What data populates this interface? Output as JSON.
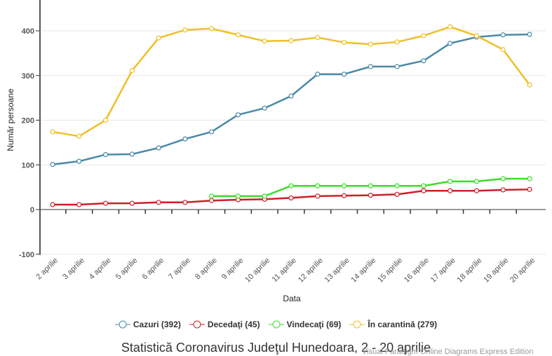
{
  "chart_data": {
    "type": "line",
    "title": "Statistică Coronavirus Judeţul Hunedoara, 2 - 20 aprilie",
    "xlabel": "Data",
    "ylabel": "Număr persoane",
    "ylim": [
      -100,
      450
    ],
    "yticks": [
      -100,
      0,
      100,
      200,
      300,
      400
    ],
    "grid": true,
    "legend_position": "bottom",
    "categories": [
      "2 aprilie",
      "3 aprilie",
      "4 aprilie",
      "5 aprilie",
      "6 aprilie",
      "7 aprilie",
      "8 aprilie",
      "9 aprilie",
      "10 aprilie",
      "11 aprilie",
      "12 aprilie",
      "13 aprilie",
      "14 aprilie",
      "15 aprilie",
      "16 aprilie",
      "17 aprilie",
      "18 aprilie",
      "19 aprilie",
      "20 aprilie"
    ],
    "series": [
      {
        "name": "Cazuri",
        "legend": "Cazuri (392)",
        "color": "#4a88a8",
        "values": [
          101,
          108,
          123,
          124,
          138,
          158,
          174,
          212,
          227,
          254,
          303,
          303,
          320,
          320,
          333,
          372,
          386,
          391,
          392
        ]
      },
      {
        "name": "Decedaţi",
        "legend": "Decedaţi (45)",
        "color": "#cc1f25",
        "values": [
          11,
          11,
          14,
          14,
          16,
          16,
          20,
          22,
          23,
          26,
          30,
          31,
          32,
          34,
          42,
          42,
          42,
          44,
          45
        ]
      },
      {
        "name": "Vindecaţi",
        "legend": "Vindecaţi (69)",
        "color": "#3ddc2a",
        "values": [
          null,
          null,
          null,
          null,
          null,
          null,
          30,
          30,
          30,
          53,
          53,
          53,
          53,
          53,
          53,
          63,
          63,
          69,
          69
        ]
      },
      {
        "name": "În carantină",
        "legend": "În carantină (279)",
        "color": "#f0bf26",
        "values": [
          174,
          164,
          200,
          311,
          384,
          402,
          405,
          391,
          377,
          378,
          385,
          374,
          370,
          375,
          389,
          409,
          389,
          358,
          279
        ]
      }
    ]
  },
  "watermark": "Visual Paradigm Online Diagrams Express Edition"
}
